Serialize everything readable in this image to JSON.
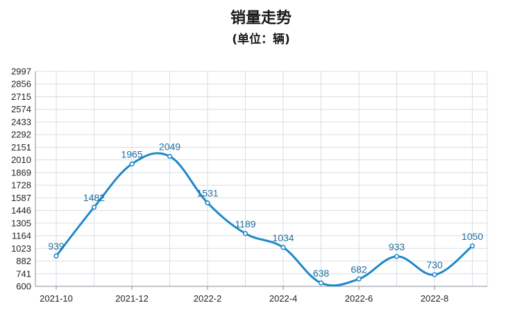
{
  "chart_data": {
    "type": "line",
    "title": "销量走势",
    "subtitle": "(单位：辆)",
    "series": [
      {
        "color": "#1f88c8",
        "points": [
          {
            "x": "2021-10",
            "y": 939,
            "label": "939"
          },
          {
            "x": "2021-11",
            "y": 1482,
            "label": "1482"
          },
          {
            "x": "2021-12",
            "y": 1965,
            "label": "1965"
          },
          {
            "x": "2022-1",
            "y": 2049,
            "label": "2049"
          },
          {
            "x": "2022-2",
            "y": 1531,
            "label": "1531"
          },
          {
            "x": "2022-3",
            "y": 1189,
            "label": "1189"
          },
          {
            "x": "2022-4",
            "y": 1034,
            "label": "1034"
          },
          {
            "x": "2022-5",
            "y": 638,
            "label": "638"
          },
          {
            "x": "2022-6",
            "y": 682,
            "label": "682"
          },
          {
            "x": "2022-7",
            "y": 933,
            "label": "933"
          },
          {
            "x": "2022-8",
            "y": 730,
            "label": "730"
          },
          {
            "x": "2022-9",
            "y": 1050,
            "label": "1050"
          }
        ]
      }
    ],
    "x_ticks": [
      "2021-10",
      "2021-12",
      "2022-2",
      "2022-4",
      "2022-6",
      "2022-8"
    ],
    "y_ticks": [
      600,
      741,
      882,
      1023,
      1164,
      1305,
      1446,
      1587,
      1728,
      1869,
      2010,
      2151,
      2292,
      2433,
      2574,
      2715,
      2856,
      2997
    ],
    "ylim": [
      600,
      2997
    ],
    "grid": true,
    "gridline_color": "#d7dde3",
    "axis_color": "#7f8c99"
  }
}
